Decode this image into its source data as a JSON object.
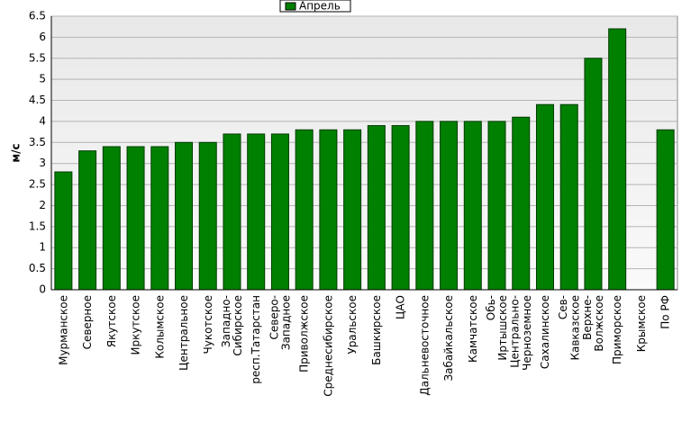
{
  "chart_data": {
    "type": "bar",
    "y_label": "м/с",
    "categories": [
      "Мурманское",
      "Северное",
      "Якутское",
      "Иркутское",
      "Колымское",
      "Центральное",
      "Чукотское",
      "Западно-\nСибирское",
      "респ.Татарстан",
      "Северо-\nЗападное",
      "Приволжское",
      "Среднесибирское",
      "Уральское",
      "Башкирское",
      "ЦАО",
      "Дальневосточное",
      "Забайкальское",
      "Камчатское",
      "Обь-\nИртышское",
      "Центрально-\nЧерноземное",
      "Сахалинское",
      "Сев-\nКавказское",
      "Верхне-\nВолжское",
      "Приморское",
      "Крымское",
      "По РФ"
    ],
    "series": [
      {
        "name": "Апрель",
        "color": "#008000",
        "values": [
          2.8,
          3.3,
          3.4,
          3.4,
          3.4,
          3.5,
          3.5,
          3.7,
          3.7,
          3.7,
          3.8,
          3.8,
          3.8,
          3.9,
          3.9,
          4.0,
          4.0,
          4.0,
          4.0,
          4.1,
          4.4,
          4.4,
          5.5,
          6.2,
          null,
          3.8
        ]
      }
    ],
    "ylim": [
      0,
      6.5
    ],
    "yticks": [
      0,
      0.5,
      1,
      1.5,
      2,
      2.5,
      3,
      3.5,
      4,
      4.5,
      5,
      5.5,
      6,
      6.5
    ],
    "grid": true,
    "legend": "top"
  }
}
